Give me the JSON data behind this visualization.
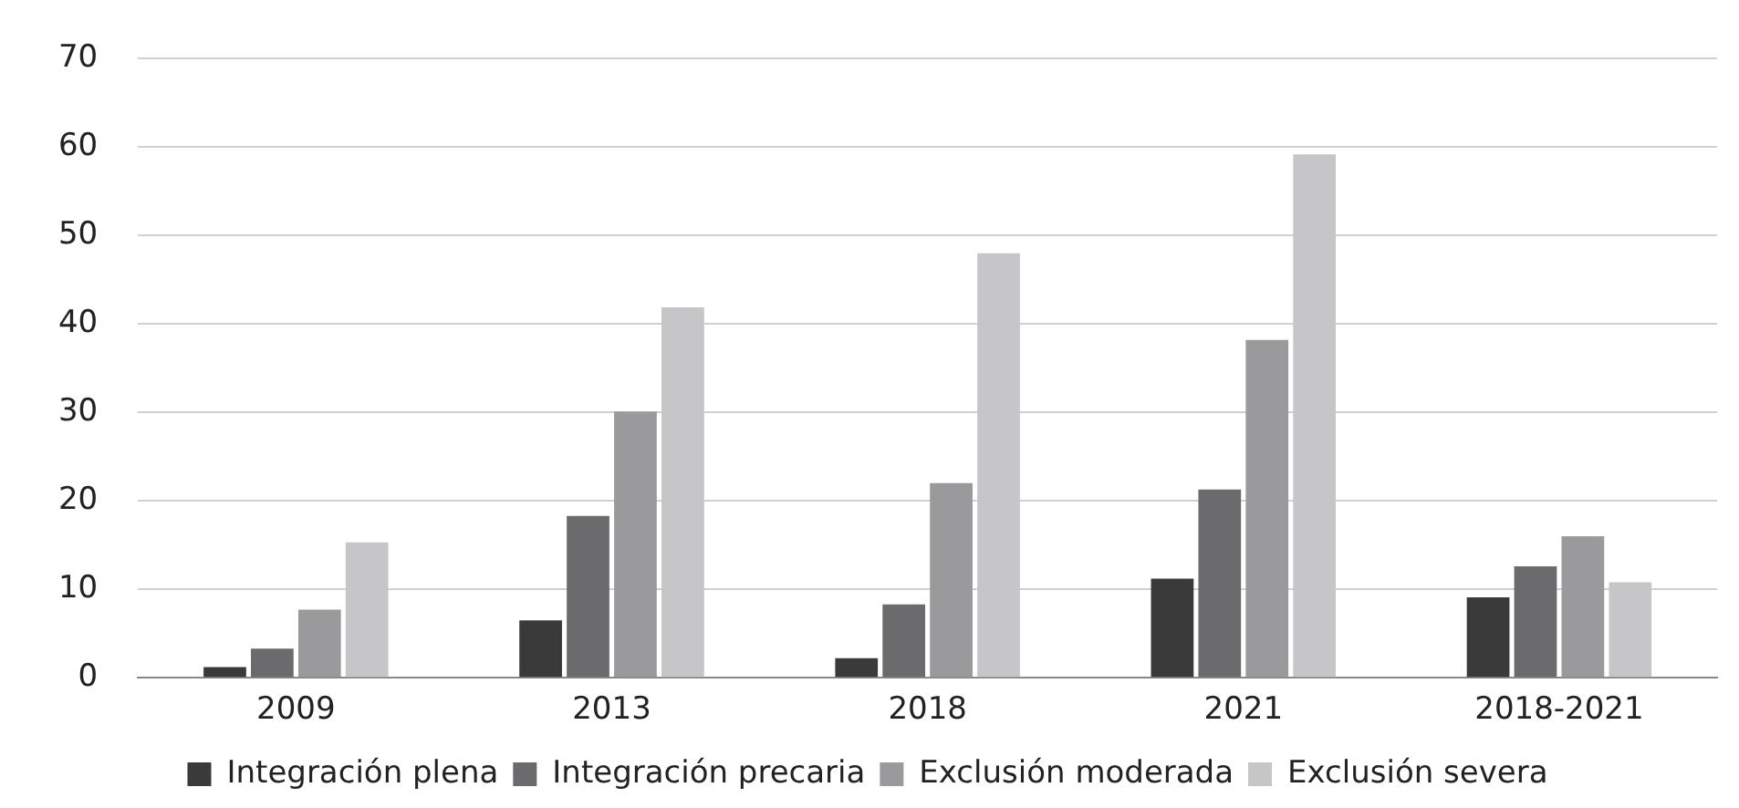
{
  "chart_data": {
    "type": "bar",
    "categories": [
      "2009",
      "2013",
      "2018",
      "2021",
      "2018-2021"
    ],
    "series": [
      {
        "name": "Integración plena",
        "color": "#3a3a3a",
        "values": [
          1.2,
          6.5,
          2.2,
          11.2,
          9.1
        ]
      },
      {
        "name": "Integración precaria",
        "color": "#6b6b6d",
        "values": [
          3.3,
          18.3,
          8.3,
          21.3,
          12.6
        ]
      },
      {
        "name": "Exclusión moderada",
        "color": "#9a9a9c",
        "values": [
          7.7,
          30.1,
          22,
          38.2,
          16
        ]
      },
      {
        "name": "Exclusión severa",
        "color": "#c6c6c8",
        "values": [
          15.3,
          41.9,
          48,
          59.2,
          10.8
        ]
      }
    ],
    "ylim": [
      0,
      70
    ],
    "yticks": [
      0,
      10,
      20,
      30,
      40,
      50,
      60,
      70
    ],
    "grid": "y",
    "legend": "bottom"
  }
}
